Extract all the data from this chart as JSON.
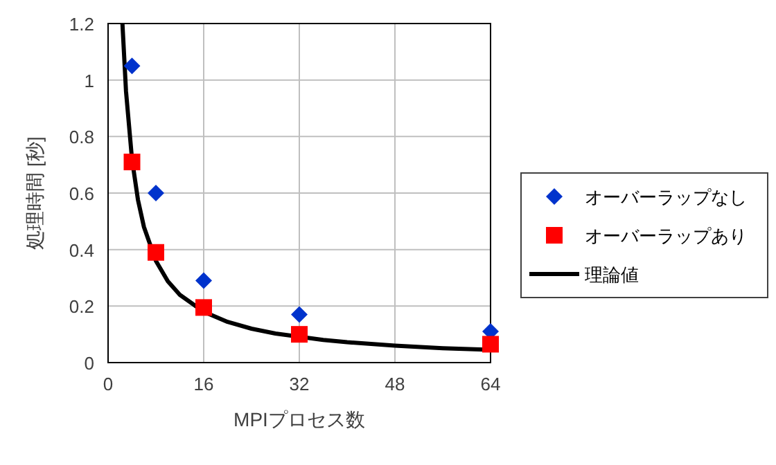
{
  "chart_data": {
    "type": "scatter",
    "xlabel": "MPIプロセス数",
    "ylabel": "処理時間 [秒]",
    "xlim": [
      0,
      64
    ],
    "ylim": [
      0,
      1.2
    ],
    "xticks": [
      0,
      16,
      32,
      48,
      64
    ],
    "yticks": [
      0,
      0.2,
      0.4,
      0.6,
      0.8,
      1,
      1.2
    ],
    "grid": true,
    "legend": "right",
    "series": [
      {
        "name": "オーバーラップなし",
        "marker": "diamond",
        "color": "#0033cc",
        "x": [
          4,
          8,
          16,
          32,
          64
        ],
        "values": [
          1.05,
          0.6,
          0.29,
          0.17,
          0.11
        ]
      },
      {
        "name": "オーバーラップあり",
        "marker": "square",
        "color": "#ff0000",
        "x": [
          4,
          8,
          16,
          32,
          64
        ],
        "values": [
          0.71,
          0.39,
          0.195,
          0.1,
          0.065
        ]
      },
      {
        "name": "理論値",
        "type": "line",
        "marker": "none",
        "color": "#000000",
        "x": [
          2.4,
          3,
          4,
          5,
          6,
          8,
          10,
          12,
          16,
          20,
          24,
          28,
          36,
          40,
          48,
          56,
          64
        ],
        "values": [
          1.2,
          0.96,
          0.72,
          0.576,
          0.48,
          0.36,
          0.288,
          0.24,
          0.18,
          0.144,
          0.12,
          0.103,
          0.08,
          0.072,
          0.06,
          0.051,
          0.045
        ]
      }
    ]
  }
}
